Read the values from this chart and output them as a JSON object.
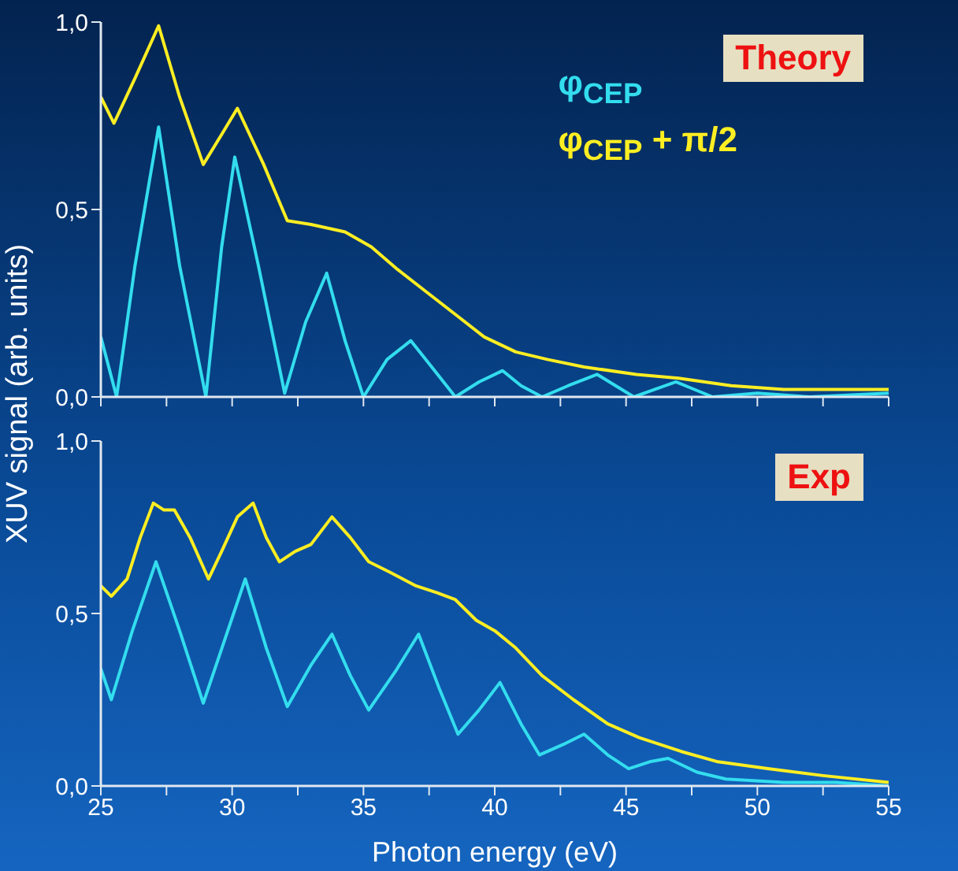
{
  "chart_data": [
    {
      "type": "line",
      "title": "Theory",
      "ylabel": "XUV signal (arb. units)",
      "legend": "top right",
      "tick_labels": "y",
      "xlim": [
        25,
        55
      ],
      "xticks": [
        25,
        {
          "value": 27.5,
          "label": null
        },
        30,
        {
          "value": 32.5,
          "label": null
        },
        35,
        {
          "value": 37.5,
          "label": null
        },
        40,
        {
          "value": 42.5,
          "label": null
        },
        45,
        {
          "value": 47.5,
          "label": null
        },
        50,
        {
          "value": 52.5,
          "label": null
        },
        55
      ],
      "ylim": [
        0,
        1
      ],
      "yticks": [
        {
          "value": 0,
          "label": "0,0"
        },
        {
          "value": 0.5,
          "label": "0,5"
        },
        {
          "value": 1,
          "label": "1,0"
        }
      ],
      "series": [
        {
          "name": "φ$_{CEP}$",
          "color": "#33ddee",
          "x": [
            25,
            25.6,
            26.3,
            27.2,
            28.0,
            29.0,
            29.6,
            30.1,
            31.0,
            32.0,
            32.8,
            33.6,
            34.3,
            35.0,
            35.9,
            36.8,
            37.6,
            38.5,
            39.4,
            40.3,
            41.0,
            41.8,
            42.8,
            43.9,
            44.6,
            45.3,
            46.1,
            46.9,
            47.6,
            48.3,
            50,
            52,
            55
          ],
          "values": [
            0.16,
            0.0,
            0.35,
            0.72,
            0.35,
            0.0,
            0.4,
            0.64,
            0.35,
            0.01,
            0.2,
            0.33,
            0.15,
            0.0,
            0.1,
            0.15,
            0.08,
            0.0,
            0.04,
            0.07,
            0.03,
            0.0,
            0.03,
            0.06,
            0.03,
            0.0,
            0.02,
            0.04,
            0.02,
            0.0,
            0.01,
            0.0,
            0.01
          ]
        },
        {
          "name": "φ$_{CEP}$ + π/2",
          "color": "#ffee22",
          "x": [
            25,
            25.5,
            26.3,
            27.2,
            28.0,
            28.9,
            29.6,
            30.2,
            31.2,
            32.1,
            33.0,
            34.3,
            35.3,
            36.3,
            37.4,
            38.5,
            39.6,
            40.8,
            42,
            43.4,
            45.4,
            47,
            49,
            51,
            53,
            55
          ],
          "values": [
            0.8,
            0.73,
            0.85,
            0.99,
            0.8,
            0.62,
            0.7,
            0.77,
            0.62,
            0.47,
            0.46,
            0.44,
            0.4,
            0.34,
            0.28,
            0.22,
            0.16,
            0.12,
            0.1,
            0.08,
            0.06,
            0.05,
            0.03,
            0.02,
            0.02,
            0.02
          ]
        }
      ]
    },
    {
      "type": "line",
      "title": "Exp",
      "xlabel": "Photon energy (eV)",
      "xlim": [
        25,
        55
      ],
      "xticks": [
        25,
        {
          "value": 27.5,
          "label": null
        },
        30,
        {
          "value": 32.5,
          "label": null
        },
        35,
        {
          "value": 37.5,
          "label": null
        },
        40,
        {
          "value": 42.5,
          "label": null
        },
        45,
        {
          "value": 47.5,
          "label": null
        },
        50,
        {
          "value": 52.5,
          "label": null
        },
        55
      ],
      "ylim": [
        0,
        1
      ],
      "yticks": [
        {
          "value": 0,
          "label": "0,0"
        },
        {
          "value": 0.5,
          "label": "0,5"
        },
        {
          "value": 1,
          "label": "1,0"
        }
      ],
      "series": [
        {
          "color": "#33ddee",
          "x": [
            25,
            25.4,
            26.2,
            27.1,
            28.0,
            28.9,
            29.7,
            30.5,
            31.3,
            32.1,
            33.0,
            33.8,
            34.5,
            35.2,
            36.2,
            37.1,
            37.9,
            38.6,
            39.4,
            40.2,
            41.0,
            41.7,
            42.6,
            43.4,
            44.3,
            45.1,
            45.9,
            46.6,
            47.7,
            48.8,
            51,
            53,
            55
          ],
          "values": [
            0.34,
            0.25,
            0.45,
            0.65,
            0.45,
            0.24,
            0.42,
            0.6,
            0.4,
            0.23,
            0.35,
            0.44,
            0.32,
            0.22,
            0.33,
            0.44,
            0.28,
            0.15,
            0.22,
            0.3,
            0.18,
            0.09,
            0.12,
            0.15,
            0.09,
            0.05,
            0.07,
            0.08,
            0.04,
            0.02,
            0.01,
            0.01,
            0.0
          ]
        },
        {
          "color": "#ffee22",
          "x": [
            25,
            25.4,
            26.0,
            26.5,
            27.0,
            27.4,
            27.8,
            28.4,
            29.1,
            29.6,
            30.2,
            30.8,
            31.3,
            31.8,
            32.4,
            33.0,
            33.4,
            33.8,
            34.5,
            35.2,
            36.0,
            37.0,
            37.8,
            38.5,
            39.3,
            40.0,
            40.8,
            41.8,
            43.0,
            44.3,
            45.5,
            47.1,
            48.5,
            50.4,
            52.5,
            55
          ],
          "values": [
            0.58,
            0.55,
            0.6,
            0.72,
            0.82,
            0.8,
            0.8,
            0.72,
            0.6,
            0.68,
            0.78,
            0.82,
            0.72,
            0.65,
            0.68,
            0.7,
            0.74,
            0.78,
            0.72,
            0.65,
            0.62,
            0.58,
            0.56,
            0.54,
            0.48,
            0.45,
            0.4,
            0.32,
            0.25,
            0.18,
            0.14,
            0.1,
            0.07,
            0.05,
            0.03,
            0.01
          ]
        }
      ]
    }
  ]
}
